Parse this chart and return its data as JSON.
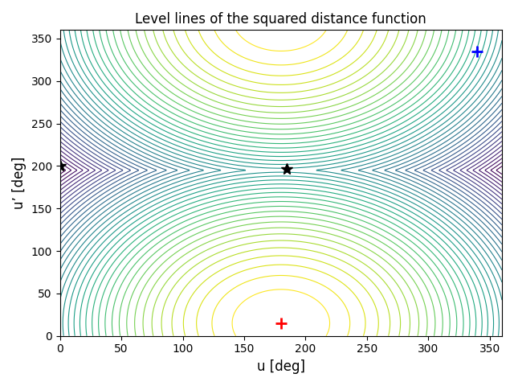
{
  "title": "Level lines of the squared distance function",
  "xlabel": "u [deg]",
  "ylabel": "u’ [deg]",
  "xlim": [
    0,
    360
  ],
  "ylim": [
    0,
    360
  ],
  "xticks": [
    0,
    50,
    100,
    150,
    200,
    250,
    300,
    350
  ],
  "yticks": [
    0,
    50,
    100,
    150,
    200,
    250,
    300,
    350
  ],
  "red_plus": [
    180,
    15
  ],
  "blue_plus": [
    340,
    335
  ],
  "black_star1": [
    0,
    200
  ],
  "black_star2": [
    185,
    197
  ],
  "n_contours": 40,
  "colormap": "viridis",
  "figsize": [
    6.4,
    4.8
  ],
  "dpi": 100,
  "target_u": 180,
  "target_uprime": 15,
  "blue_plus_u": 340,
  "blue_plus_up": 335
}
